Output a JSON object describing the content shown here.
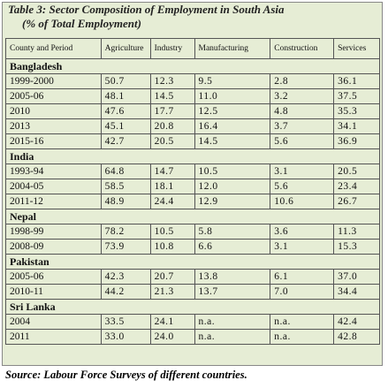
{
  "title": {
    "line1": "Table 3: Sector Composition of Employment in South Asia",
    "line2": "(% of Total Employment)"
  },
  "table": {
    "header": [
      "County and Period",
      "Agriculture",
      "Industry",
      "Manufacturing",
      "Construction",
      "Services"
    ],
    "groups": [
      {
        "name": "Bangladesh",
        "rows": [
          [
            "1999-2000",
            "50.7",
            "12.3",
            "9.5",
            "2.8",
            "36.1"
          ],
          [
            "2005-06",
            "48.1",
            "14.5",
            "11.0",
            "3.2",
            "37.5"
          ],
          [
            "2010",
            "47.6",
            "17.7",
            "12.5",
            "4.8",
            "35.3"
          ],
          [
            "2013",
            "45.1",
            "20.8",
            "16.4",
            "3.7",
            "34.1"
          ],
          [
            "2015-16",
            "42.7",
            "20.5",
            "14.5",
            "5.6",
            "36.9"
          ]
        ]
      },
      {
        "name": "India",
        "rows": [
          [
            "1993-94",
            "64.8",
            "14.7",
            "10.5",
            "3.1",
            "20.5"
          ],
          [
            "2004-05",
            "58.5",
            "18.1",
            "12.0",
            "5.6",
            "23.4"
          ],
          [
            "2011-12",
            "48.9",
            "24.4",
            "12.9",
            "10.6",
            "26.7"
          ]
        ]
      },
      {
        "name": "Nepal",
        "rows": [
          [
            "1998-99",
            "78.2",
            "10.5",
            "5.8",
            "3.6",
            "11.3"
          ],
          [
            "2008-09",
            "73.9",
            "10.8",
            "6.6",
            "3.1",
            "15.3"
          ]
        ]
      },
      {
        "name": "Pakistan",
        "rows": [
          [
            "2005-06",
            "42.3",
            "20.7",
            "13.8",
            "6.1",
            "37.0"
          ],
          [
            "2010-11",
            "44.2",
            "21.3",
            "13.7",
            "7.0",
            "34.4"
          ]
        ]
      },
      {
        "name": "Sri Lanka",
        "rows": [
          [
            "2004",
            "33.5",
            "24.1",
            "n.a.",
            "n.a.",
            "42.4"
          ],
          [
            "2011",
            "33.0",
            "24.0",
            "n.a.",
            "n.a.",
            "42.8"
          ]
        ]
      }
    ]
  },
  "source": "Source: Labour Force Surveys of different countries."
}
